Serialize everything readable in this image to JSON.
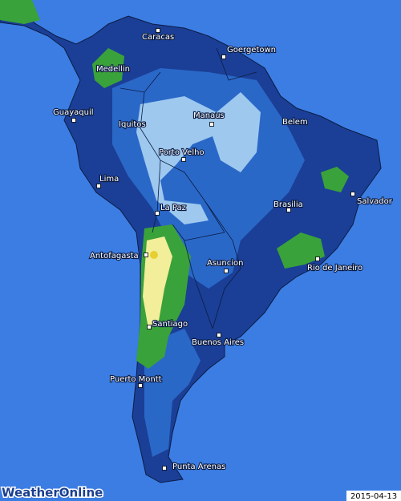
{
  "map": {
    "cities": [
      "Caracas",
      "Goergetown",
      "Medellin",
      "Guayaquil",
      "Iquitos",
      "Manaus",
      "Belem",
      "Porto Velho",
      "Lima",
      "Salvador",
      "La Paz",
      "Brasilia",
      "Antofagasta",
      "Rio de Janeiro",
      "Asuncion",
      "Santiago",
      "Buenos Aires",
      "Puerto Montt",
      "Punta Arenas"
    ],
    "date": "2015-04-13",
    "logo": "WeatherOnline"
  }
}
